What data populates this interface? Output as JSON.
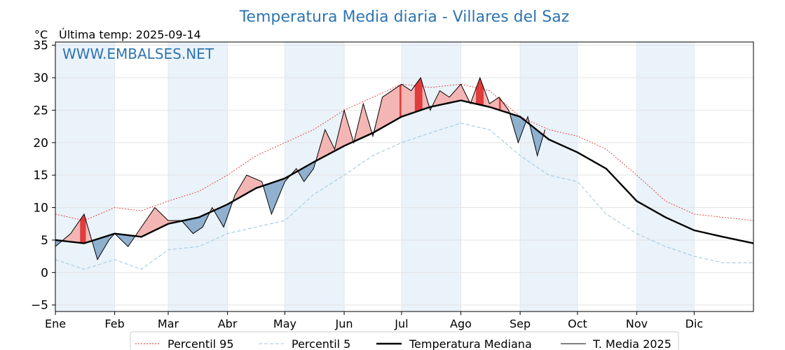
{
  "chart_data": {
    "type": "area",
    "title": "Temperatura Media diaria - Villares del Saz",
    "unit_label": "°C",
    "last_temp_label": "Última temp: 2025-09-14",
    "watermark": "WWW.EMBALSES.NET",
    "ylim": [
      -6,
      35.5
    ],
    "y_ticks": [
      {
        "value": -5,
        "label": "−5"
      },
      {
        "value": 0,
        "label": "0"
      },
      {
        "value": 5,
        "label": "5"
      },
      {
        "value": 10,
        "label": "10"
      },
      {
        "value": 15,
        "label": "15"
      },
      {
        "value": 20,
        "label": "20"
      },
      {
        "value": 25,
        "label": "25"
      },
      {
        "value": 30,
        "label": "30"
      },
      {
        "value": 35,
        "label": "35"
      }
    ],
    "x_range_days": [
      0,
      365
    ],
    "month_ticks": [
      {
        "day": 0,
        "label": "Ene"
      },
      {
        "day": 31,
        "label": "Feb"
      },
      {
        "day": 59,
        "label": "Mar"
      },
      {
        "day": 90,
        "label": "Abr"
      },
      {
        "day": 120,
        "label": "May"
      },
      {
        "day": 151,
        "label": "Jun"
      },
      {
        "day": 181,
        "label": "Jul"
      },
      {
        "day": 212,
        "label": "Ago"
      },
      {
        "day": 243,
        "label": "Sep"
      },
      {
        "day": 273,
        "label": "Oct"
      },
      {
        "day": 304,
        "label": "Nov"
      },
      {
        "day": 334,
        "label": "Dic"
      }
    ],
    "last_data_day": 256,
    "grid": true,
    "legend_position": "bottom-center",
    "legend": [
      {
        "label": "Percentil 95",
        "style": "p95"
      },
      {
        "label": "Percentil 5",
        "style": "p5"
      },
      {
        "label": "Temperatura Mediana",
        "style": "median"
      },
      {
        "label": "T. Media 2025",
        "style": "current"
      }
    ],
    "colors": {
      "title": "#2e75b0",
      "p95": "#e8211c",
      "p5": "#9ecbe0",
      "median": "#000000",
      "current": "#000000",
      "above_fill": "#f4b6b4",
      "above_fill_extreme": "#e03c3c",
      "below_fill": "#8fb0cf",
      "below_fill_extreme": "#1f4e88",
      "month_band": "#eaf2fa"
    },
    "series": [
      {
        "name": "Percentil 95",
        "x": [
          0,
          15,
          31,
          45,
          59,
          75,
          90,
          105,
          120,
          135,
          151,
          166,
          181,
          196,
          212,
          227,
          243,
          258,
          273,
          288,
          304,
          319,
          334,
          349,
          365
        ],
        "y": [
          9,
          8,
          10,
          9.5,
          11,
          12.5,
          15,
          18,
          20,
          22,
          25,
          27,
          29,
          28.5,
          29,
          28,
          24,
          22,
          21,
          19,
          15,
          11,
          9,
          8.5,
          8
        ]
      },
      {
        "name": "Percentil 5",
        "x": [
          0,
          15,
          31,
          45,
          59,
          75,
          90,
          105,
          120,
          135,
          151,
          166,
          181,
          196,
          212,
          227,
          243,
          258,
          273,
          288,
          304,
          319,
          334,
          349,
          365
        ],
        "y": [
          2,
          0.5,
          2,
          0.5,
          3.5,
          4,
          6,
          7,
          8,
          12,
          15,
          18,
          20,
          21.5,
          23,
          22,
          18,
          15,
          14,
          9,
          6,
          4,
          2.5,
          1.5,
          1.5
        ]
      },
      {
        "name": "Temperatura Mediana",
        "x": [
          0,
          15,
          31,
          45,
          59,
          75,
          90,
          105,
          120,
          135,
          151,
          166,
          181,
          196,
          212,
          227,
          243,
          258,
          273,
          288,
          304,
          319,
          334,
          349,
          365
        ],
        "y": [
          5,
          4.5,
          6,
          5.5,
          7.5,
          8.5,
          10.5,
          13,
          14.5,
          17,
          19.5,
          21.5,
          24,
          25.5,
          26.5,
          25.5,
          24,
          20.5,
          18.5,
          16,
          11,
          8.5,
          6.5,
          5.5,
          4.5
        ]
      },
      {
        "name": "T. Media 2025",
        "x": [
          0,
          8,
          15,
          22,
          28,
          31,
          38,
          45,
          52,
          59,
          66,
          72,
          77,
          82,
          88,
          94,
          100,
          108,
          113,
          120,
          126,
          130,
          135,
          141,
          146,
          151,
          156,
          161,
          166,
          171,
          176,
          181,
          186,
          191,
          196,
          201,
          206,
          212,
          217,
          222,
          227,
          232,
          237,
          242,
          247,
          252,
          256
        ],
        "y": [
          4,
          6,
          9,
          2,
          5,
          6,
          4,
          7,
          10,
          8,
          8,
          6,
          7,
          10,
          7,
          12,
          15,
          14,
          9,
          14,
          16,
          14,
          16,
          22,
          19,
          25,
          20,
          26,
          21,
          27,
          28,
          29,
          28,
          30,
          25,
          28,
          27,
          29,
          26,
          30,
          26,
          27,
          25,
          20,
          24,
          18,
          22
        ]
      }
    ]
  }
}
